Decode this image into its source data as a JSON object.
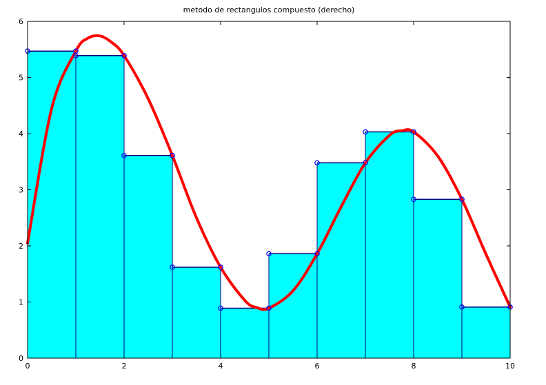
{
  "chart_data": {
    "type": "line",
    "title": "metodo de rectangulos compuesto (derecho)",
    "xlabel": "",
    "ylabel": "",
    "xlim": [
      0,
      10
    ],
    "ylim": [
      0,
      6
    ],
    "xticks": [
      0,
      2,
      4,
      6,
      8,
      10
    ],
    "yticks": [
      0,
      1,
      2,
      3,
      4,
      5,
      6
    ],
    "grid": false,
    "legend": "none",
    "colors": {
      "fill": "#00ffff",
      "rect_edge": "#000080",
      "curve": "#ff0000",
      "markers": "#0000ff"
    },
    "series": [
      {
        "type": "area-steps",
        "x": [
          0,
          1,
          2,
          3,
          4,
          5,
          6,
          7,
          8,
          9,
          10
        ],
        "heights": [
          5.47,
          5.39,
          3.61,
          1.62,
          0.89,
          1.86,
          3.48,
          4.03,
          2.83,
          0.91
        ]
      },
      {
        "type": "line",
        "x": [
          0,
          0.5,
          1,
          1.25,
          1.5,
          1.75,
          2,
          2.5,
          3,
          3.5,
          4,
          4.5,
          4.75,
          5,
          5.5,
          6,
          6.5,
          7,
          7.5,
          7.75,
          8,
          8.5,
          9,
          9.5,
          10
        ],
        "y": [
          2.05,
          4.45,
          5.47,
          5.7,
          5.74,
          5.62,
          5.39,
          4.62,
          3.61,
          2.5,
          1.62,
          1.03,
          0.9,
          0.89,
          1.2,
          1.86,
          2.7,
          3.48,
          3.97,
          4.05,
          4.03,
          3.6,
          2.83,
          1.85,
          0.91
        ]
      },
      {
        "type": "markers",
        "x": [
          0,
          1,
          1,
          2,
          2,
          3,
          3,
          4,
          4,
          5,
          5,
          6,
          6,
          7,
          7,
          8,
          8,
          9,
          9,
          10
        ],
        "y": [
          5.47,
          5.47,
          5.39,
          5.39,
          3.61,
          3.61,
          1.62,
          1.62,
          0.89,
          0.89,
          1.86,
          1.86,
          3.48,
          3.48,
          4.03,
          4.03,
          2.83,
          2.83,
          0.91,
          0.91
        ]
      }
    ]
  }
}
